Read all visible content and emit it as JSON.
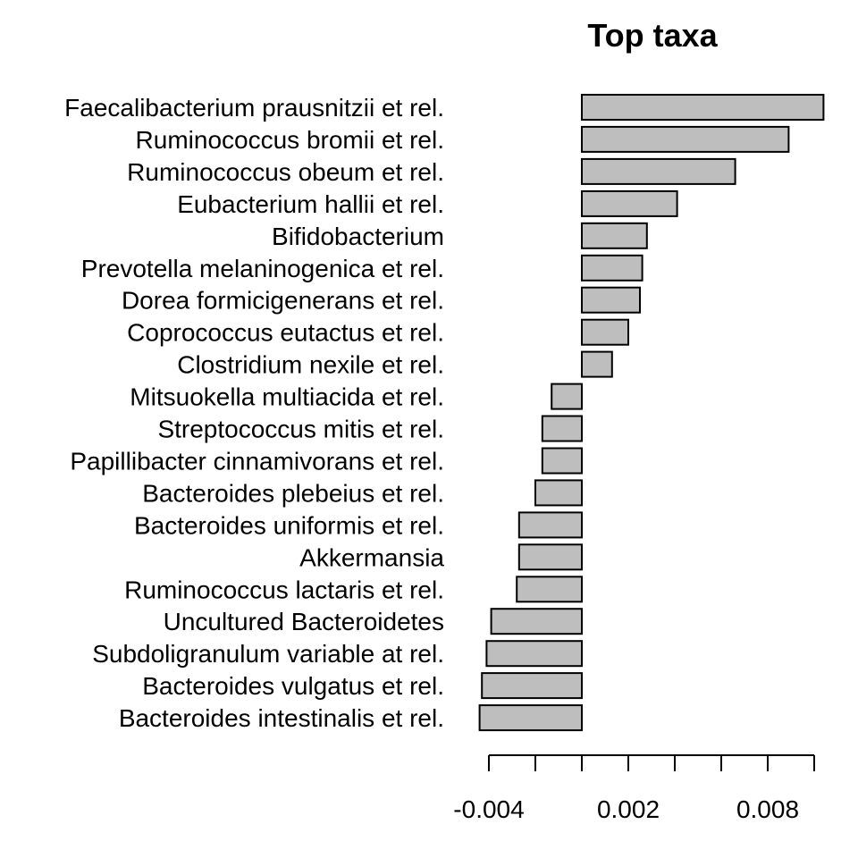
{
  "chart_data": {
    "type": "bar",
    "orientation": "horizontal",
    "title": "Top taxa",
    "xlabel": "",
    "ylabel": "",
    "xlim": [
      -0.0044,
      0.0097
    ],
    "grid": false,
    "legend": "none",
    "categories": [
      "Faecalibacterium prausnitzii et rel.",
      "Ruminococcus bromii et rel.",
      "Ruminococcus obeum et rel.",
      "Eubacterium hallii et rel.",
      "Bifidobacterium",
      "Prevotella melaninogenica et rel.",
      "Dorea formicigenerans et rel.",
      "Coprococcus eutactus et rel.",
      "Clostridium nexile et rel.",
      "Mitsuokella multiacida et rel.",
      "Streptococcus mitis et rel.",
      "Papillibacter cinnamivorans et rel.",
      "Bacteroides plebeius et rel.",
      "Bacteroides uniformis et rel.",
      "Akkermansia",
      "Ruminococcus lactaris et rel.",
      "Uncultured Bacteroidetes",
      "Subdoligranulum variable at rel.",
      "Bacteroides vulgatus et rel.",
      "Bacteroides intestinalis et rel."
    ],
    "values": [
      0.0104,
      0.0089,
      0.0066,
      0.0041,
      0.0028,
      0.0026,
      0.0025,
      0.002,
      0.0013,
      -0.0013,
      -0.0017,
      -0.0017,
      -0.002,
      -0.0027,
      -0.0027,
      -0.0028,
      -0.0039,
      -0.0041,
      -0.0043,
      -0.0044
    ],
    "x_ticks": [
      -0.004,
      -0.002,
      0.0,
      0.002,
      0.004,
      0.006,
      0.008,
      0.01
    ],
    "x_tick_labels": [
      "-0.004",
      "",
      "",
      "0.002",
      "",
      "",
      "0.008",
      ""
    ],
    "colors": {
      "bar_fill": "#bebebe",
      "bar_stroke": "#000000"
    }
  }
}
